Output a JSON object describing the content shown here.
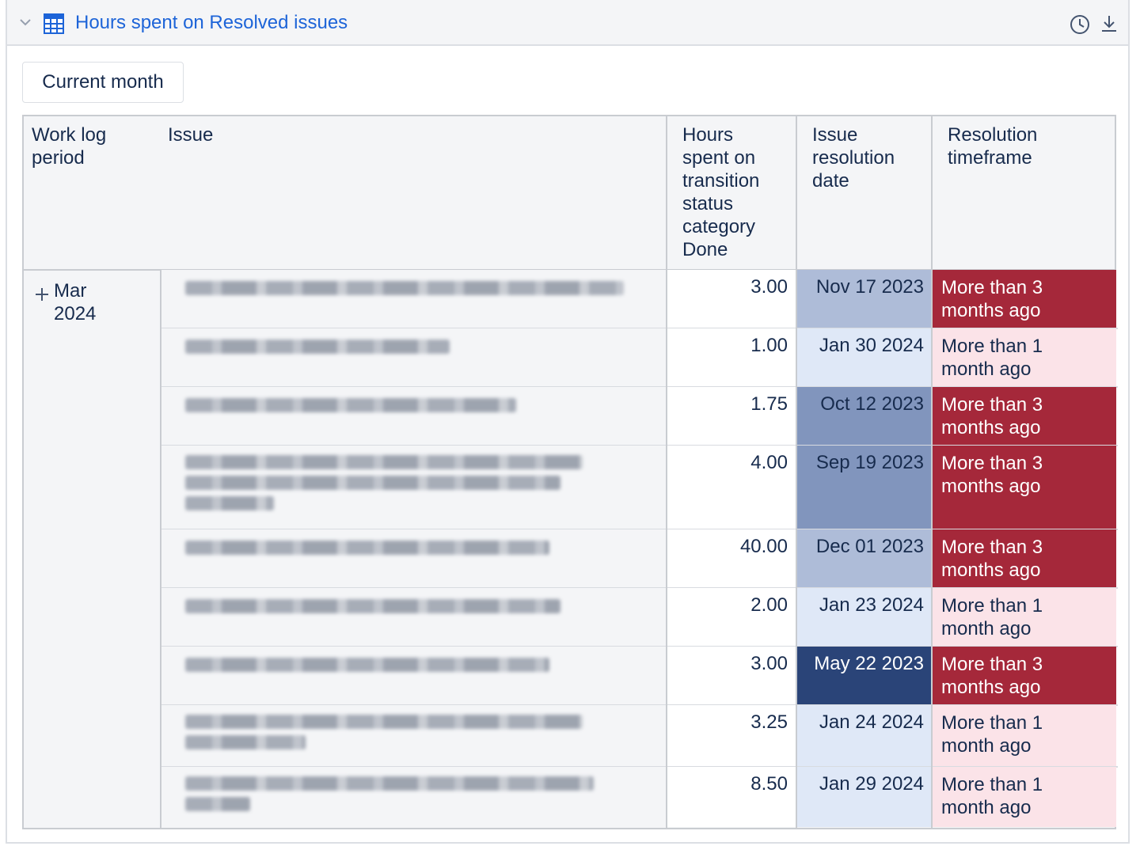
{
  "panel": {
    "title": "Hours spent on Resolved issues",
    "filter_button": "Current month"
  },
  "colors": {
    "title_link": "#1d64d8",
    "dark_red": "#a5283a",
    "light_pink": "#fbe3e8",
    "navy": "#2a4478",
    "blue_mid": "#8195bd",
    "blue_light": "#aebcd8",
    "blue_pale": "#dfe8f7"
  },
  "table": {
    "headers": {
      "period": [
        "Work log",
        "period"
      ],
      "issue": [
        "Issue"
      ],
      "hours": [
        "Hours",
        "spent on",
        "transition",
        "status",
        "category",
        "Done"
      ],
      "date": [
        "Issue",
        "resolution",
        "date"
      ],
      "resolution": [
        "Resolution",
        "timeframe"
      ]
    },
    "period": [
      "Mar",
      "2024"
    ],
    "rows": [
      {
        "hours": "3.00",
        "date": "Nov 17 2023",
        "res": [
          "More than 3",
          "months ago"
        ]
      },
      {
        "hours": "1.00",
        "date": "Jan 30 2024",
        "res": [
          "More than 1",
          "month ago"
        ]
      },
      {
        "hours": "1.75",
        "date": "Oct 12 2023",
        "res": [
          "More than 3",
          "months ago"
        ]
      },
      {
        "hours": "4.00",
        "date": "Sep 19 2023",
        "res": [
          "More than 3",
          "months ago"
        ]
      },
      {
        "hours": "40.00",
        "date": "Dec 01 2023",
        "res": [
          "More than 3",
          "months ago"
        ]
      },
      {
        "hours": "2.00",
        "date": "Jan 23 2024",
        "res": [
          "More than 1",
          "month ago"
        ]
      },
      {
        "hours": "3.00",
        "date": "May 22 2023",
        "res": [
          "More than 3",
          "months ago"
        ]
      },
      {
        "hours": "3.25",
        "date": "Jan 24 2024",
        "res": [
          "More than 1",
          "month ago"
        ]
      },
      {
        "hours": "8.50",
        "date": "Jan 29 2024",
        "res": [
          "More than 1",
          "month ago"
        ]
      }
    ]
  },
  "icons": {
    "collapse": "chevron-down-icon",
    "report_type": "table-grid-icon",
    "history": "clock-icon",
    "download": "download-icon",
    "expand": "plus-icon"
  }
}
